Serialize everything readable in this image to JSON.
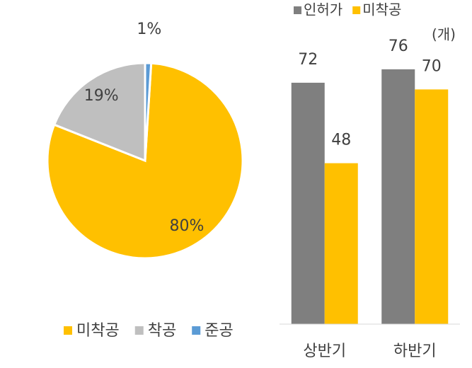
{
  "chart_data": [
    {
      "type": "pie",
      "categories": [
        "미착공",
        "착공",
        "준공"
      ],
      "values": [
        80,
        19,
        1
      ],
      "value_labels": [
        "80%",
        "19%",
        "1%"
      ],
      "colors": [
        "#FFC000",
        "#BFBFBF",
        "#5B9BD5"
      ]
    },
    {
      "type": "bar",
      "unit": "(개)",
      "categories": [
        "상반기",
        "하반기"
      ],
      "series": [
        {
          "name": "인허가",
          "color": "#7F7F7F",
          "values": [
            72,
            76
          ]
        },
        {
          "name": "미착공",
          "color": "#FFC000",
          "values": [
            48,
            70
          ]
        }
      ],
      "ylim": [
        0,
        80
      ]
    }
  ]
}
